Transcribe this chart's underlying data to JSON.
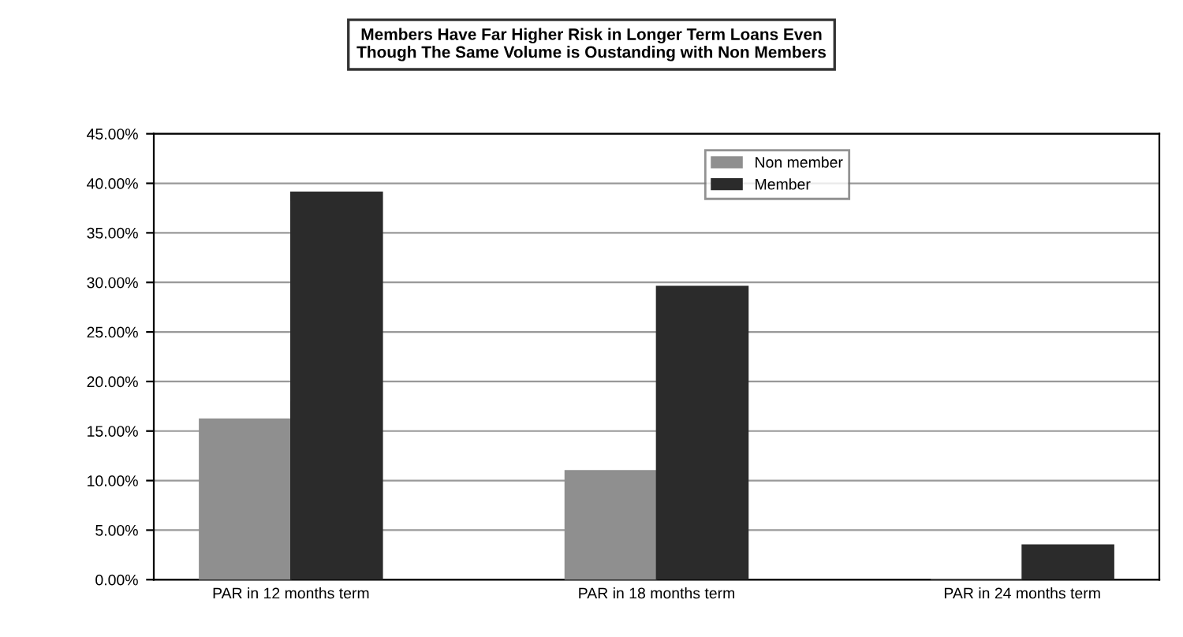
{
  "chart_data": {
    "type": "bar",
    "title": "Members Have Far Higher Risk in Longer Term Loans Even\nThough The Same Volume is Oustanding with Non Members",
    "categories": [
      "PAR in 12 months term",
      "PAR in 18 months term",
      "PAR in 24 months term"
    ],
    "series": [
      {
        "name": "Non member",
        "color": "#8f8f8f",
        "values": [
          16.2,
          11.0,
          0
        ]
      },
      {
        "name": "Member",
        "color": "#2b2b2b",
        "values": [
          39.1,
          29.6,
          3.5
        ]
      }
    ],
    "ylim": [
      0,
      45
    ],
    "yticks": [
      {
        "value": 0,
        "label": "0.00%"
      },
      {
        "value": 5,
        "label": "5.00%"
      },
      {
        "value": 10,
        "label": "10.00%"
      },
      {
        "value": 15,
        "label": "15.00%"
      },
      {
        "value": 20,
        "label": "20.00%"
      },
      {
        "value": 25,
        "label": "25.00%"
      },
      {
        "value": 30,
        "label": "30.00%"
      },
      {
        "value": 35,
        "label": "35.00%"
      },
      {
        "value": 40,
        "label": "40.00%"
      },
      {
        "value": 45,
        "label": "45.00%"
      }
    ],
    "grid": "y",
    "legend": "top right"
  }
}
